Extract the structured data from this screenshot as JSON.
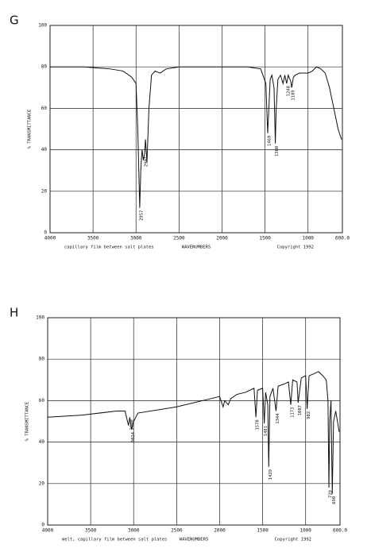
{
  "chart_data": [
    {
      "type": "line",
      "label": "G",
      "ylabel": "% TRANSMITTANCE",
      "xlabel": "WAVENUMBERS",
      "note": "capillary film between salt plates",
      "copyright": "Copyright 1992",
      "color": "#111111",
      "grid": true,
      "xlim": [
        4000,
        600
      ],
      "ylim": [
        0,
        100
      ],
      "xticks": [
        4000,
        3500,
        3000,
        2500,
        2000,
        1500,
        1000,
        {
          "value": 600,
          "label": "600.0"
        }
      ],
      "yticks": [
        0,
        20,
        40,
        60,
        80,
        100
      ],
      "x": [
        4000,
        3600,
        3300,
        3150,
        3050,
        3000,
        2980,
        2957,
        2945,
        2930,
        2915,
        2901,
        2890,
        2873,
        2850,
        2820,
        2780,
        2720,
        2650,
        2500,
        2000,
        1700,
        1550,
        1490,
        1469,
        1455,
        1440,
        1420,
        1395,
        1380,
        1370,
        1350,
        1320,
        1290,
        1270,
        1248,
        1230,
        1200,
        1189,
        1170,
        1150,
        1100,
        1000,
        950,
        900,
        850,
        800,
        750,
        700,
        650,
        610
      ],
      "values": [
        80,
        80,
        79,
        78,
        75,
        72,
        50,
        12,
        30,
        40,
        35,
        38,
        45,
        34,
        60,
        76,
        78,
        77,
        79,
        80,
        80,
        80,
        79,
        72,
        48,
        60,
        74,
        76,
        70,
        43,
        60,
        74,
        76,
        72,
        76,
        72,
        76,
        73,
        70,
        75,
        76,
        77,
        77,
        78,
        80,
        79,
        77,
        70,
        60,
        50,
        45
      ],
      "peaks": [
        2957,
        2901,
        1469,
        1380,
        1248,
        1189
      ]
    },
    {
      "type": "line",
      "label": "H",
      "ylabel": "% TRANSMITTANCE",
      "xlabel": "WAVENUMBERS",
      "note": "melt, capillary film between salt plates",
      "copyright": "Copyright 1992",
      "color": "#111111",
      "grid": true,
      "xlim": [
        4000,
        600
      ],
      "ylim": [
        0,
        100
      ],
      "xticks": [
        4000,
        3500,
        3000,
        2500,
        2000,
        1500,
        1000,
        {
          "value": 600,
          "label": "600.0"
        }
      ],
      "yticks": [
        0,
        20,
        40,
        60,
        80,
        100
      ],
      "x": [
        4000,
        3600,
        3200,
        3100,
        3060,
        3045,
        3024,
        3000,
        2950,
        2500,
        2000,
        1960,
        1940,
        1900,
        1870,
        1800,
        1700,
        1600,
        1578,
        1560,
        1500,
        1481,
        1465,
        1440,
        1429,
        1415,
        1380,
        1344,
        1320,
        1250,
        1200,
        1173,
        1150,
        1100,
        1087,
        1050,
        1000,
        982,
        960,
        900,
        850,
        800,
        760,
        740,
        729,
        720,
        705,
        690,
        675,
        650,
        610
      ],
      "values": [
        52,
        53,
        55,
        55,
        48,
        52,
        46,
        50,
        54,
        57,
        62,
        57,
        60,
        58,
        61,
        63,
        64,
        66,
        52,
        65,
        66,
        49,
        64,
        58,
        28,
        62,
        66,
        55,
        67,
        68,
        69,
        58,
        70,
        69,
        59,
        71,
        72,
        56,
        72,
        73,
        74,
        72,
        70,
        60,
        18,
        50,
        60,
        15,
        50,
        55,
        45
      ],
      "peaks": [
        3040,
        3024,
        1578,
        1481,
        1429,
        1344,
        1173,
        1087,
        982,
        729,
        690
      ]
    }
  ]
}
